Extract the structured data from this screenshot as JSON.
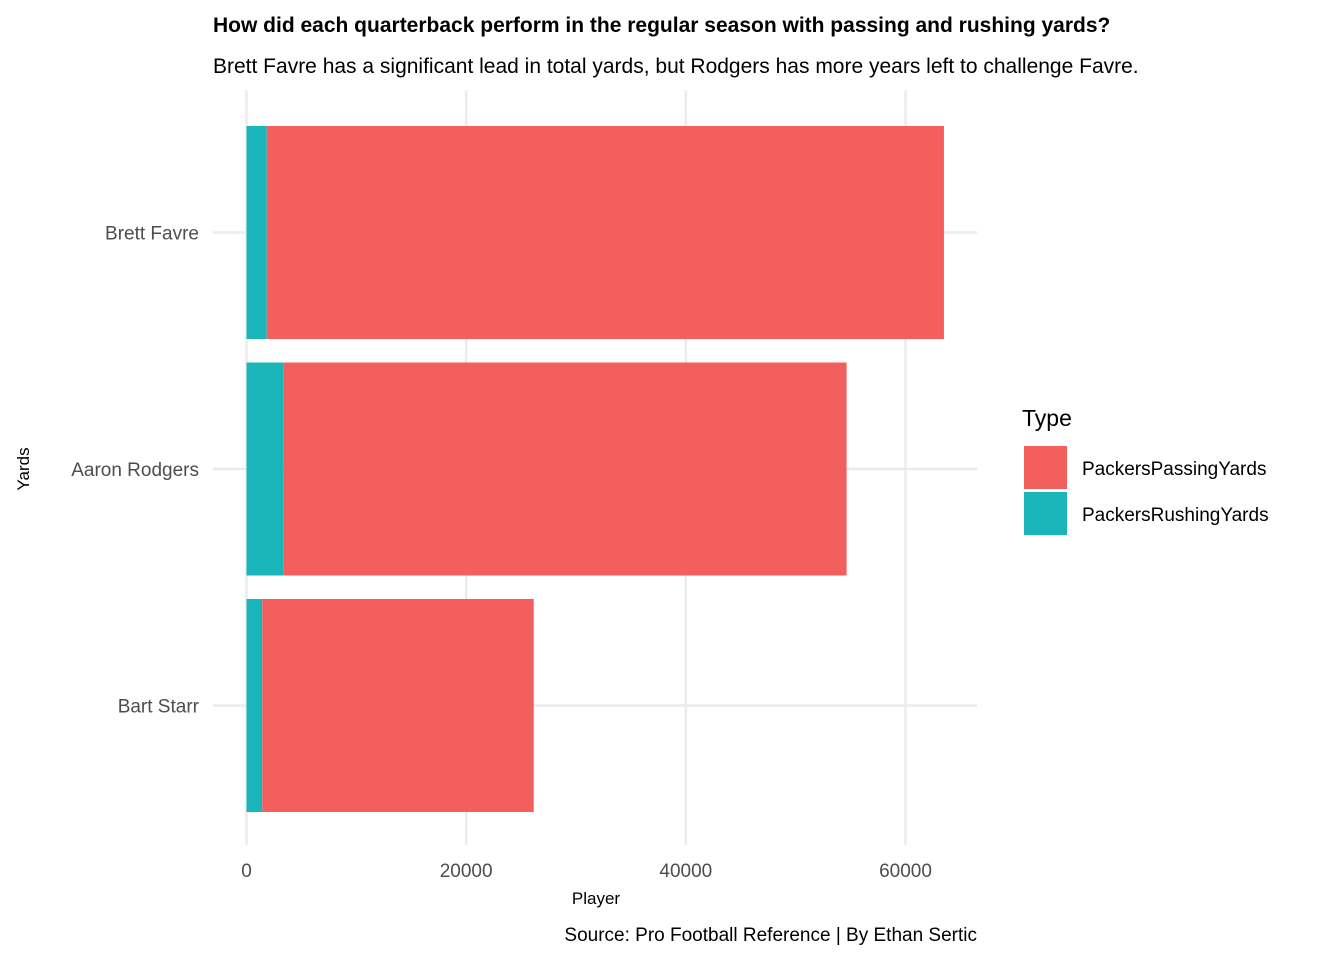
{
  "chart_data": {
    "type": "bar",
    "orientation": "horizontal",
    "stacked": true,
    "title": "How did each quarterback perform in the regular season with passing and rushing yards?",
    "subtitle": "Brett Favre has a significant lead in total yards, but Rodgers has more years left to challenge Favre.",
    "xlabel": "Player",
    "ylabel": "Yards",
    "caption": "Source: Pro Football Reference | By Ethan Sertic",
    "categories": [
      "Brett Favre",
      "Aaron Rodgers",
      "Bart Starr"
    ],
    "series": [
      {
        "name": "PackersPassingYards",
        "color": "#f25f5c",
        "values": [
          61655,
          51245,
          24718
        ]
      },
      {
        "name": "PackersRushingYards",
        "color": "#19b5b8",
        "values": [
          1844,
          3389,
          1433
        ]
      }
    ],
    "xlim": [
      0,
      66500
    ],
    "xticks": [
      0,
      20000,
      40000,
      60000
    ],
    "grid": true,
    "legend": {
      "title": "Type",
      "placement": "right"
    }
  }
}
